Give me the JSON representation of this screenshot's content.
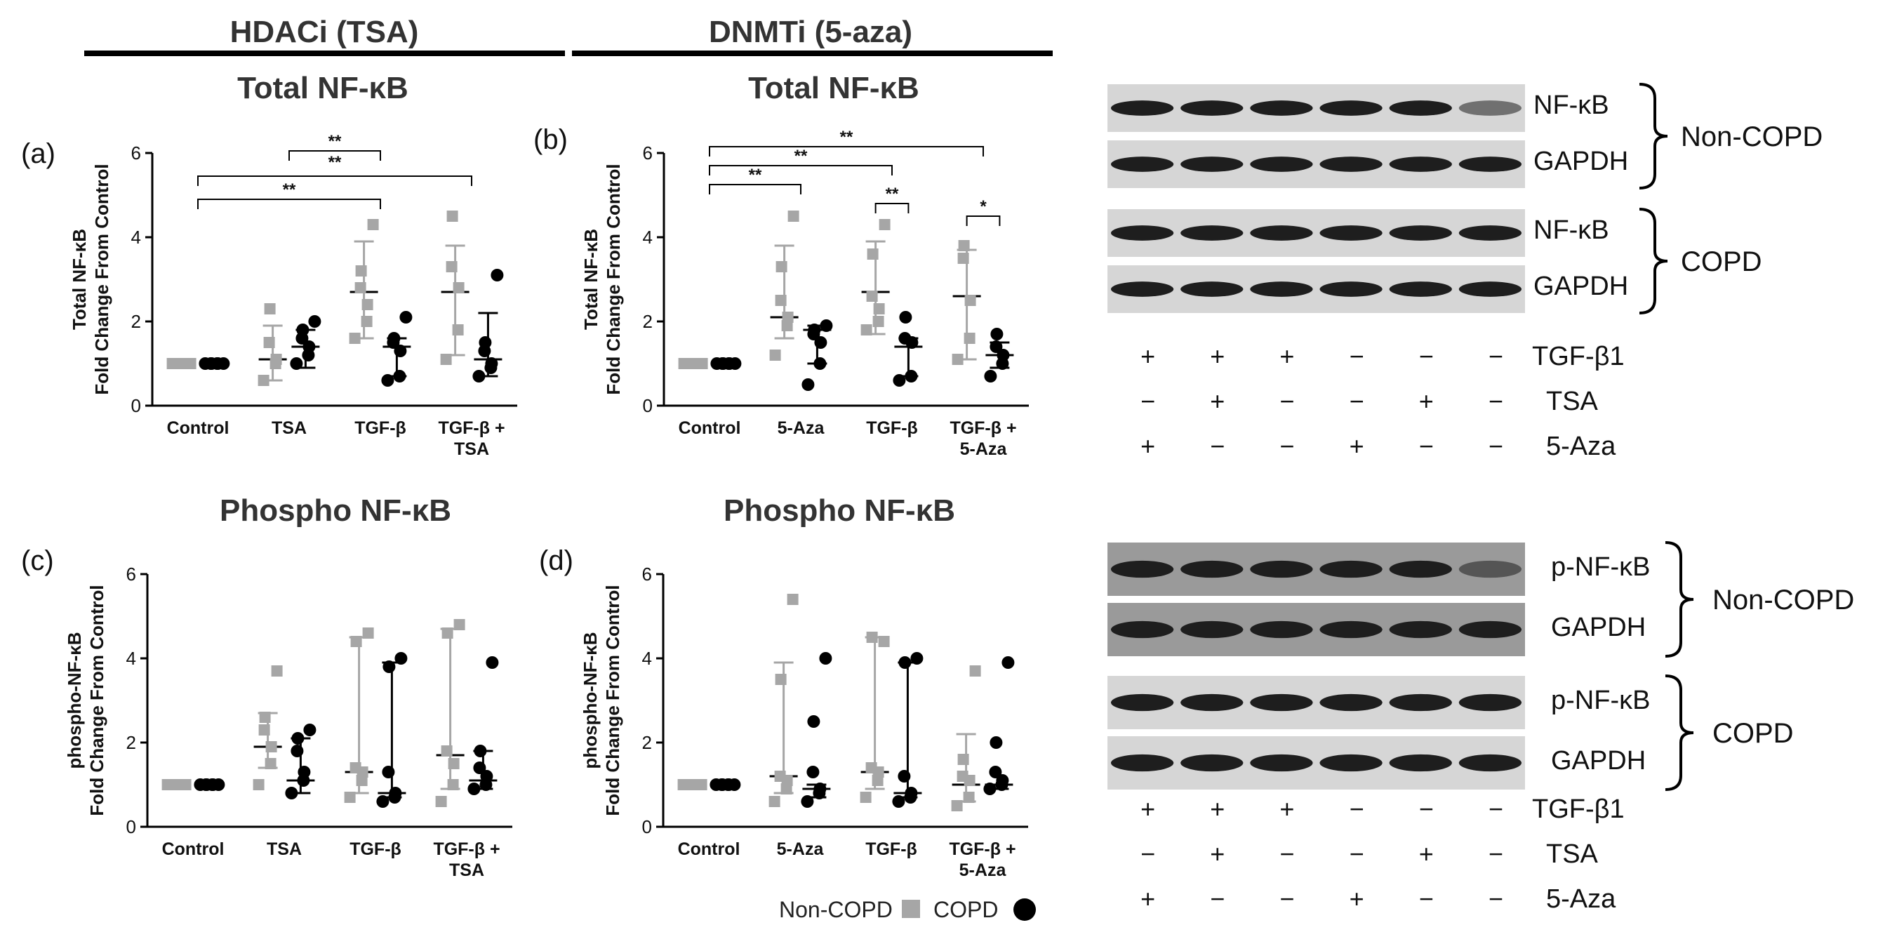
{
  "headers": {
    "hdaci": "HDACi (TSA)",
    "dnmti": "DNMTi (5-aza)"
  },
  "colors": {
    "non_copd": "#a6a6a6",
    "copd": "#000000",
    "axis": "#000000",
    "blot_bg": "#d6d6d6",
    "band": "#1e1e1e"
  },
  "legend": {
    "non_copd": "Non-COPD",
    "copd": "COPD"
  },
  "chart_data": [
    {
      "panel_label": "(a)",
      "title": "Total NF-κB",
      "type": "scatter",
      "ylabel": [
        "Total NF-κB",
        "Fold Change From Control"
      ],
      "ylim": [
        0,
        6
      ],
      "yticks": [
        "0",
        "2",
        "4",
        "6"
      ],
      "categories": [
        "Control",
        "TSA",
        "TGF-β",
        "TGF-β + TSA"
      ],
      "category_lines": [
        [
          "Control"
        ],
        [
          "TSA"
        ],
        [
          "TGF-β"
        ],
        [
          "TGF-β +",
          "TSA"
        ]
      ],
      "series": [
        {
          "name": "Non-COPD",
          "marker": "square",
          "points": [
            [
              1,
              1,
              1,
              1,
              1,
              1
            ],
            [
              0.6,
              1.0,
              1.1,
              1.5,
              2.3
            ],
            [
              1.6,
              2.0,
              2.4,
              2.8,
              3.2,
              4.3
            ],
            [
              1.1,
              1.8,
              2.8,
              3.3,
              4.5
            ]
          ],
          "median": [
            1.0,
            1.1,
            2.7,
            2.7
          ],
          "range": [
            [
              1,
              1
            ],
            [
              0.6,
              1.9
            ],
            [
              1.6,
              3.9
            ],
            [
              1.2,
              3.8
            ]
          ]
        },
        {
          "name": "COPD",
          "marker": "circle",
          "points": [
            [
              1,
              1,
              1,
              1,
              1,
              1
            ],
            [
              1.0,
              1.2,
              1.4,
              1.6,
              1.8,
              2.0
            ],
            [
              0.6,
              0.7,
              1.3,
              1.5,
              1.6,
              2.1
            ],
            [
              0.7,
              0.9,
              1.0,
              1.3,
              1.5,
              3.1
            ]
          ],
          "median": [
            1.0,
            1.4,
            1.4,
            1.1
          ],
          "range": [
            [
              1,
              1
            ],
            [
              0.9,
              1.8
            ],
            [
              0.7,
              1.6
            ],
            [
              0.7,
              2.2
            ]
          ]
        }
      ],
      "significance": [
        {
          "from": 0,
          "to": 2,
          "label": "**"
        },
        {
          "from": 1,
          "to": 2,
          "label": "**"
        },
        {
          "from": 1,
          "to": 2,
          "label": "**"
        },
        {
          "from": 0,
          "to": 3,
          "label": ""
        }
      ]
    },
    {
      "panel_label": "(b)",
      "title": "Total NF-κB",
      "type": "scatter",
      "ylabel": [
        "Total NF-κB",
        "Fold Change From Control"
      ],
      "ylim": [
        0,
        6
      ],
      "yticks": [
        "0",
        "2",
        "4",
        "6"
      ],
      "categories": [
        "Control",
        "5-Aza",
        "TGF-β",
        "TGF-β + 5-Aza"
      ],
      "category_lines": [
        [
          "Control"
        ],
        [
          "5-Aza"
        ],
        [
          "TGF-β"
        ],
        [
          "TGF-β +",
          "5-Aza"
        ]
      ],
      "series": [
        {
          "name": "Non-COPD",
          "marker": "square",
          "points": [
            [
              1,
              1,
              1,
              1,
              1,
              1
            ],
            [
              1.2,
              1.9,
              2.1,
              2.5,
              3.3,
              4.5
            ],
            [
              1.8,
              2.0,
              2.3,
              2.6,
              3.6,
              4.3
            ],
            [
              1.1,
              1.6,
              2.5,
              3.5,
              3.8
            ]
          ],
          "median": [
            1.0,
            2.1,
            2.7,
            2.6
          ],
          "range": [
            [
              1,
              1
            ],
            [
              1.6,
              3.8
            ],
            [
              1.7,
              3.9
            ],
            [
              1.1,
              3.7
            ]
          ]
        },
        {
          "name": "COPD",
          "marker": "circle",
          "points": [
            [
              1,
              1,
              1,
              1,
              1,
              1
            ],
            [
              0.5,
              1.0,
              1.5,
              1.7,
              1.8,
              1.9
            ],
            [
              0.6,
              0.7,
              1.5,
              1.6,
              2.1
            ],
            [
              0.7,
              1.0,
              1.2,
              1.4,
              1.7
            ]
          ],
          "median": [
            1.0,
            1.8,
            1.4,
            1.2
          ],
          "range": [
            [
              1,
              1
            ],
            [
              1.0,
              1.9
            ],
            [
              0.7,
              1.6
            ],
            [
              0.9,
              1.5
            ]
          ]
        }
      ],
      "significance": [
        {
          "from": 0,
          "to": 1,
          "label": "**"
        },
        {
          "from": 0,
          "to": 2,
          "label": "**"
        },
        {
          "from": 0,
          "to": 3,
          "label": "**"
        },
        {
          "from": 2,
          "to": 2,
          "label": "**"
        },
        {
          "from": 3,
          "to": 3,
          "label": "*"
        }
      ]
    },
    {
      "panel_label": "(c)",
      "title": "Phospho NF-κB",
      "type": "scatter",
      "ylabel": [
        "phospho-NF-κB",
        "Fold Change From Control"
      ],
      "ylim": [
        0,
        6
      ],
      "yticks": [
        "0",
        "2",
        "4",
        "6"
      ],
      "categories": [
        "Control",
        "TSA",
        "TGF-β",
        "TGF-β + TSA"
      ],
      "category_lines": [
        [
          "Control"
        ],
        [
          "TSA"
        ],
        [
          "TGF-β"
        ],
        [
          "TGF-β +",
          "TSA"
        ]
      ],
      "series": [
        {
          "name": "Non-COPD",
          "marker": "square",
          "points": [
            [
              1,
              1,
              1,
              1,
              1,
              1
            ],
            [
              1.0,
              1.5,
              1.9,
              2.3,
              2.6,
              3.7
            ],
            [
              0.7,
              1.1,
              1.3,
              1.4,
              4.4,
              4.6
            ],
            [
              0.6,
              1.0,
              1.5,
              1.8,
              4.6,
              4.8
            ]
          ],
          "median": [
            1.0,
            1.9,
            1.3,
            1.7
          ],
          "range": [
            [
              1,
              1
            ],
            [
              1.4,
              2.7
            ],
            [
              0.8,
              4.5
            ],
            [
              0.9,
              4.7
            ]
          ]
        },
        {
          "name": "COPD",
          "marker": "circle",
          "points": [
            [
              1,
              1,
              1,
              1,
              1,
              1
            ],
            [
              0.8,
              1.1,
              1.3,
              1.8,
              2.1,
              2.3
            ],
            [
              0.6,
              0.7,
              0.8,
              1.3,
              3.8,
              4.0
            ],
            [
              0.9,
              1.0,
              1.2,
              1.4,
              1.8,
              3.9
            ]
          ],
          "median": [
            1.0,
            1.1,
            0.8,
            1.1
          ],
          "range": [
            [
              1,
              1
            ],
            [
              0.8,
              2.1
            ],
            [
              0.7,
              3.9
            ],
            [
              0.9,
              1.8
            ]
          ]
        }
      ],
      "significance": []
    },
    {
      "panel_label": "(d)",
      "title": "Phospho NF-κB",
      "type": "scatter",
      "ylabel": [
        "phospho-NF-κB",
        "Fold Change From Control"
      ],
      "ylim": [
        0,
        6
      ],
      "yticks": [
        "0",
        "2",
        "4",
        "6"
      ],
      "categories": [
        "Control",
        "5-Aza",
        "TGF-β",
        "TGF-β + 5-Aza"
      ],
      "category_lines": [
        [
          "Control"
        ],
        [
          "5-Aza"
        ],
        [
          "TGF-β"
        ],
        [
          "TGF-β +",
          "5-Aza"
        ]
      ],
      "series": [
        {
          "name": "Non-COPD",
          "marker": "square",
          "points": [
            [
              1,
              1,
              1,
              1,
              1,
              1
            ],
            [
              0.6,
              0.9,
              1.1,
              1.2,
              3.5,
              5.4
            ],
            [
              0.7,
              1.1,
              1.3,
              1.4,
              4.5,
              4.4
            ],
            [
              0.5,
              0.7,
              1.1,
              1.2,
              1.6,
              3.7
            ]
          ],
          "median": [
            1.0,
            1.2,
            1.3,
            1.0
          ],
          "range": [
            [
              1,
              1
            ],
            [
              0.8,
              3.9
            ],
            [
              0.9,
              4.5
            ],
            [
              0.6,
              2.2
            ]
          ]
        },
        {
          "name": "COPD",
          "marker": "circle",
          "points": [
            [
              1,
              1,
              1,
              1,
              1,
              1
            ],
            [
              0.6,
              0.8,
              0.9,
              1.3,
              2.5,
              4.0
            ],
            [
              0.6,
              0.7,
              0.8,
              1.2,
              3.9,
              4.0
            ],
            [
              0.9,
              1.0,
              1.1,
              1.3,
              2.0,
              3.9
            ]
          ],
          "median": [
            1.0,
            0.9,
            0.8,
            1.0
          ],
          "range": [
            [
              1,
              1
            ],
            [
              0.7,
              1.0
            ],
            [
              0.7,
              3.9
            ],
            [
              0.9,
              1.0
            ]
          ]
        }
      ],
      "significance": []
    }
  ],
  "blots": [
    {
      "rows": [
        {
          "protein": "NF-κB",
          "group": "Non-COPD"
        },
        {
          "protein": "GAPDH",
          "group": "Non-COPD"
        },
        {
          "protein": "NF-κB",
          "group": "COPD"
        },
        {
          "protein": "GAPDH",
          "group": "COPD"
        }
      ],
      "groups": [
        "Non-COPD",
        "COPD"
      ],
      "treatments": [
        {
          "label": "TGF-β1",
          "signs": [
            "+",
            "+",
            "+",
            "−",
            "−",
            "−"
          ]
        },
        {
          "label": "TSA",
          "signs": [
            "−",
            "+",
            "−",
            "−",
            "+",
            "−"
          ]
        },
        {
          "label": "5-Aza",
          "signs": [
            "+",
            "−",
            "−",
            "+",
            "−",
            "−"
          ]
        }
      ]
    },
    {
      "rows": [
        {
          "protein": "p-NF-κB",
          "group": "Non-COPD"
        },
        {
          "protein": "GAPDH",
          "group": "Non-COPD"
        },
        {
          "protein": "p-NF-κB",
          "group": "COPD"
        },
        {
          "protein": "GAPDH",
          "group": "COPD"
        }
      ],
      "groups": [
        "Non-COPD",
        "COPD"
      ],
      "treatments": [
        {
          "label": "TGF-β1",
          "signs": [
            "+",
            "+",
            "+",
            "−",
            "−",
            "−"
          ]
        },
        {
          "label": "TSA",
          "signs": [
            "−",
            "+",
            "−",
            "−",
            "+",
            "−"
          ]
        },
        {
          "label": "5-Aza",
          "signs": [
            "+",
            "−",
            "−",
            "+",
            "−",
            "−"
          ]
        }
      ]
    }
  ]
}
